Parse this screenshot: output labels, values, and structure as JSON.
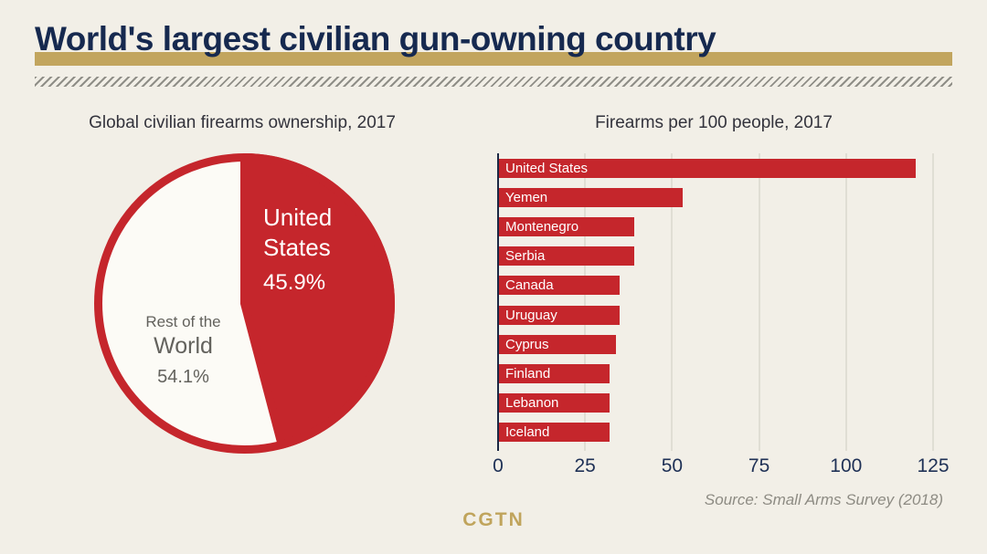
{
  "header": {
    "title": "World's largest civilian gun-owning country"
  },
  "chart_data": [
    {
      "type": "pie",
      "title": "Global civilian firearms ownership, 2017",
      "start_angle": "top",
      "direction": "clockwise",
      "slices": [
        {
          "label": "United States",
          "label_lines": [
            "United",
            "States"
          ],
          "value": 45.9,
          "display": "45.9%",
          "color": "#c5262c"
        },
        {
          "label": "Rest of the World",
          "label_lines": [
            "Rest of the",
            "World"
          ],
          "value": 54.1,
          "display": "54.1%",
          "color": "#fcfbf6"
        }
      ]
    },
    {
      "type": "bar",
      "orientation": "horizontal",
      "title": "Firearms per 100 people, 2017",
      "categories": [
        "United States",
        "Yemen",
        "Montenegro",
        "Serbia",
        "Canada",
        "Uruguay",
        "Cyprus",
        "Finland",
        "Lebanon",
        "Iceland"
      ],
      "values": [
        120,
        53,
        39,
        39,
        35,
        35,
        34,
        32,
        32,
        32
      ],
      "xlim": [
        0,
        125
      ],
      "xticks": [
        0,
        25,
        50,
        75,
        100,
        125
      ],
      "grid": true,
      "bar_color": "#c5262c",
      "legend": "none"
    }
  ],
  "footer": {
    "source": "Source: Small Arms Survey (2018)",
    "logo": "CGTN"
  },
  "colors": {
    "background": "#f2efe7",
    "red": "#c5262c",
    "navy": "#16294f",
    "gold": "#c2a55e",
    "gray_text": "#8d8b83"
  }
}
